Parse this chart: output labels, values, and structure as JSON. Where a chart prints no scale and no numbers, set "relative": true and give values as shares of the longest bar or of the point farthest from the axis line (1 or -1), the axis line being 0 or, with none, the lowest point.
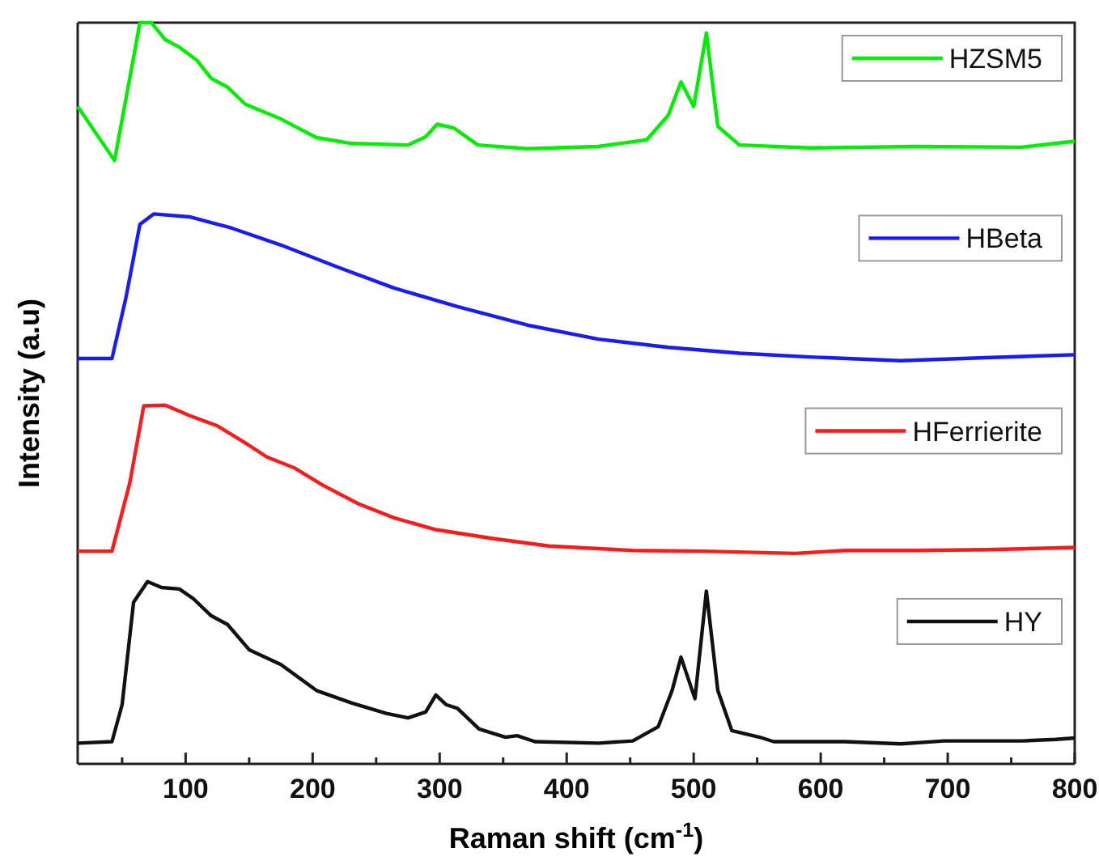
{
  "chart_data": {
    "type": "line",
    "relative": true,
    "xlabel": "Raman shift (cm$^{-1}$)",
    "ylabel": "Intensity (a.u)",
    "xlim": [
      15,
      800
    ],
    "xticks": [
      {
        "value": 50,
        "label": null
      },
      100,
      {
        "value": 150,
        "label": null
      },
      200,
      {
        "value": 250,
        "label": null
      },
      300,
      {
        "value": 350,
        "label": null
      },
      400,
      {
        "value": 450,
        "label": null
      },
      500,
      {
        "value": 550,
        "label": null
      },
      600,
      {
        "value": 650,
        "label": null
      },
      700,
      {
        "value": 750,
        "label": null
      },
      800
    ],
    "legend": "right",
    "grid": false,
    "line_style": "solid",
    "marker": "none",
    "series": [
      {
        "name": "HZSM5",
        "color": "#00ee00",
        "x": [
          15,
          44,
          56,
          64,
          73,
          84,
          95,
          109,
          120,
          133,
          147,
          175,
          203,
          231,
          275,
          289,
          298,
          311,
          330,
          369,
          425,
          463,
          480,
          490,
          500,
          510,
          519,
          536,
          591,
          674,
          758,
          800
        ],
        "values": [
          0.887,
          0.814,
          0.925,
          1,
          1,
          0.977,
          0.967,
          0.949,
          0.925,
          0.913,
          0.89,
          0.87,
          0.845,
          0.837,
          0.835,
          0.846,
          0.863,
          0.858,
          0.835,
          0.83,
          0.833,
          0.842,
          0.875,
          0.92,
          0.887,
          0.986,
          0.86,
          0.835,
          0.831,
          0.833,
          0.832,
          0.84
        ]
      },
      {
        "name": "HBeta",
        "color": "#1a1aff",
        "x": [
          15,
          42,
          53,
          64,
          75,
          103,
          136,
          175,
          220,
          264,
          314,
          369,
          425,
          480,
          536,
          591,
          663,
          730,
          800
        ],
        "values": [
          0.547,
          0.547,
          0.629,
          0.728,
          0.742,
          0.738,
          0.723,
          0.7,
          0.67,
          0.642,
          0.617,
          0.592,
          0.573,
          0.562,
          0.554,
          0.549,
          0.544,
          0.548,
          0.552
        ]
      },
      {
        "name": "HFerrierite",
        "color": "#ff1a1a",
        "x": [
          15,
          42,
          56,
          67,
          84,
          103,
          125,
          147,
          164,
          186,
          208,
          236,
          264,
          297,
          342,
          386,
          452,
          508,
          580,
          619,
          674,
          730,
          800
        ],
        "values": [
          0.287,
          0.287,
          0.379,
          0.483,
          0.484,
          0.47,
          0.456,
          0.433,
          0.414,
          0.399,
          0.376,
          0.351,
          0.332,
          0.316,
          0.304,
          0.294,
          0.288,
          0.287,
          0.284,
          0.288,
          0.288,
          0.289,
          0.292
        ]
      },
      {
        "name": "HY",
        "color": "#111111",
        "x": [
          15,
          42,
          50,
          59,
          70,
          81,
          95,
          106,
          120,
          133,
          150,
          175,
          203,
          231,
          258,
          275,
          289,
          297,
          305,
          314,
          331,
          352,
          361,
          375,
          425,
          452,
          472,
          483,
          490,
          501,
          510,
          519,
          530,
          552,
          563,
          619,
          663,
          697,
          758,
          785,
          800
        ],
        "values": [
          0.028,
          0.03,
          0.08,
          0.218,
          0.246,
          0.238,
          0.236,
          0.223,
          0.2,
          0.188,
          0.154,
          0.134,
          0.099,
          0.082,
          0.068,
          0.062,
          0.07,
          0.093,
          0.08,
          0.075,
          0.047,
          0.036,
          0.038,
          0.03,
          0.028,
          0.031,
          0.05,
          0.099,
          0.144,
          0.088,
          0.233,
          0.099,
          0.045,
          0.036,
          0.03,
          0.03,
          0.027,
          0.031,
          0.031,
          0.033,
          0.035
        ]
      }
    ]
  }
}
